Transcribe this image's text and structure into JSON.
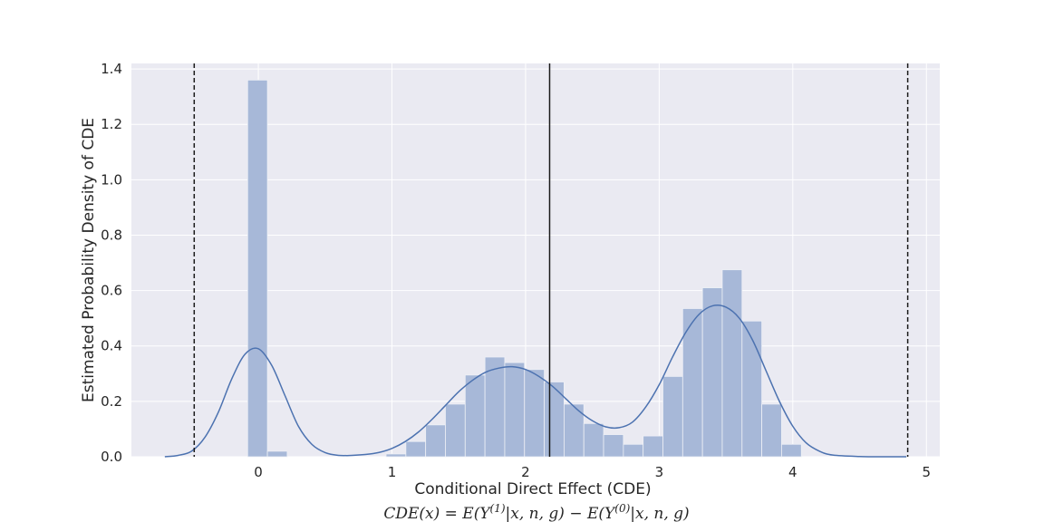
{
  "chart_data": {
    "type": "bar",
    "subtype": "histogram-with-kde",
    "title": "",
    "xlabel": "Conditional Direct Effect (CDE)",
    "xlabel_formula": "CDE(x) = E(Y^(1)|x, n, g) − E(Y^(0)|x, n, g)",
    "xlabel_formula_parts": {
      "lhs": "CDE(x) = E(Y",
      "sup1": "(1)",
      "mid": "|x, n, g) − E(Y",
      "sup2": "(0)",
      "rhs": "|x, n, g)"
    },
    "ylabel": "Estimated Probability Density of CDE",
    "xlim": [
      -0.95,
      5.1
    ],
    "ylim": [
      0,
      1.42
    ],
    "xticks": [
      0,
      1,
      2,
      3,
      4,
      5
    ],
    "yticks": [
      0.0,
      0.2,
      0.4,
      0.6,
      0.8,
      1.0,
      1.2,
      1.4
    ],
    "xtick_labels": [
      "0",
      "1",
      "2",
      "3",
      "4",
      "5"
    ],
    "ytick_labels": [
      "0.0",
      "0.2",
      "0.4",
      "0.6",
      "0.8",
      "1.0",
      "1.2",
      "1.4"
    ],
    "grid": true,
    "legend": "none",
    "bar_color": "#a7b8d8",
    "kde_color": "#4c72b0",
    "background_color": "#eaeaf2",
    "histogram": {
      "bin_width": 0.148,
      "bin_left_edges": [
        -0.08,
        0.068,
        0.956,
        1.104,
        1.252,
        1.4,
        1.548,
        1.696,
        1.844,
        1.992,
        2.14,
        2.288,
        2.436,
        2.584,
        2.732,
        2.88,
        3.028,
        3.176,
        3.324,
        3.472,
        3.62,
        3.768,
        3.916
      ],
      "densities": [
        1.36,
        0.02,
        0.01,
        0.055,
        0.115,
        0.19,
        0.295,
        0.36,
        0.34,
        0.315,
        0.27,
        0.19,
        0.12,
        0.08,
        0.045,
        0.075,
        0.29,
        0.535,
        0.61,
        0.675,
        0.49,
        0.19,
        0.045
      ]
    },
    "kde": {
      "x": [
        -0.7,
        -0.6,
        -0.5,
        -0.4,
        -0.3,
        -0.2,
        -0.1,
        0.0,
        0.1,
        0.2,
        0.3,
        0.4,
        0.5,
        0.6,
        0.7,
        0.8,
        0.9,
        1.0,
        1.1,
        1.2,
        1.3,
        1.4,
        1.5,
        1.6,
        1.7,
        1.8,
        1.9,
        2.0,
        2.1,
        2.2,
        2.3,
        2.4,
        2.5,
        2.6,
        2.7,
        2.8,
        2.9,
        3.0,
        3.1,
        3.2,
        3.3,
        3.4,
        3.5,
        3.6,
        3.7,
        3.8,
        3.9,
        4.0,
        4.1,
        4.2,
        4.3,
        4.5,
        4.7,
        4.85
      ],
      "y": [
        0.0,
        0.005,
        0.02,
        0.07,
        0.16,
        0.28,
        0.37,
        0.39,
        0.33,
        0.22,
        0.11,
        0.045,
        0.015,
        0.005,
        0.005,
        0.008,
        0.015,
        0.03,
        0.055,
        0.09,
        0.135,
        0.185,
        0.235,
        0.275,
        0.305,
        0.32,
        0.325,
        0.315,
        0.29,
        0.255,
        0.21,
        0.165,
        0.13,
        0.108,
        0.105,
        0.125,
        0.18,
        0.26,
        0.36,
        0.45,
        0.515,
        0.545,
        0.54,
        0.5,
        0.42,
        0.31,
        0.2,
        0.11,
        0.05,
        0.02,
        0.006,
        0.001,
        0.0,
        0.0
      ]
    },
    "vertical_lines": [
      {
        "x": -0.48,
        "style": "dashed"
      },
      {
        "x": 2.18,
        "style": "solid"
      },
      {
        "x": 4.86,
        "style": "dashed"
      }
    ]
  }
}
